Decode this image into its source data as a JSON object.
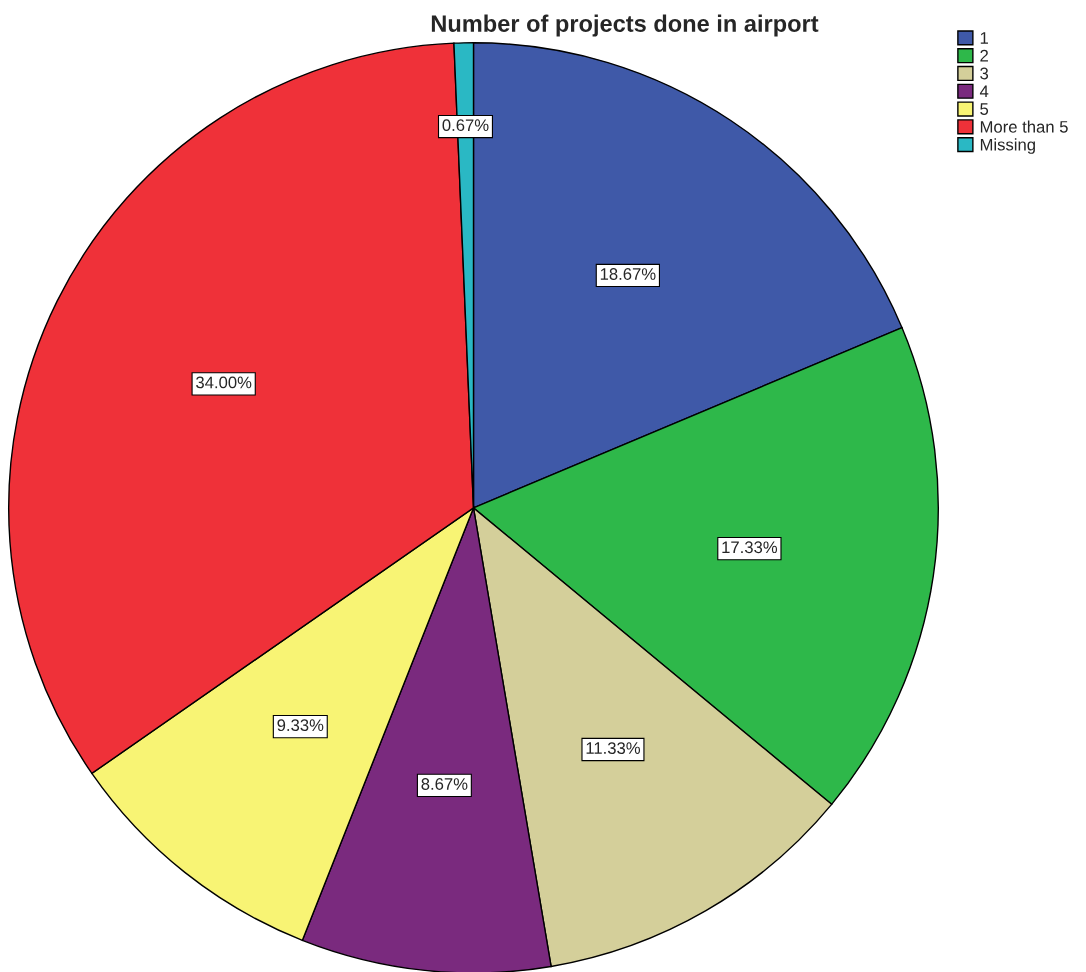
{
  "chart_data": {
    "type": "pie",
    "title": "Number of projects done in airport",
    "categories": [
      "1",
      "2",
      "3",
      "4",
      "5",
      "More than 5",
      "Missing"
    ],
    "values": [
      18.67,
      17.33,
      11.33,
      8.67,
      9.33,
      34.0,
      0.67
    ],
    "value_labels": [
      "18.67%",
      "17.33%",
      "11.33%",
      "8.67%",
      "9.33%",
      "34.00%",
      "0.67%"
    ],
    "colors": [
      "#3f59a8",
      "#2eb84a",
      "#d4cf9a",
      "#7a2a7e",
      "#f8f474",
      "#ef3139",
      "#2ab8c4"
    ],
    "legend": "top right"
  }
}
